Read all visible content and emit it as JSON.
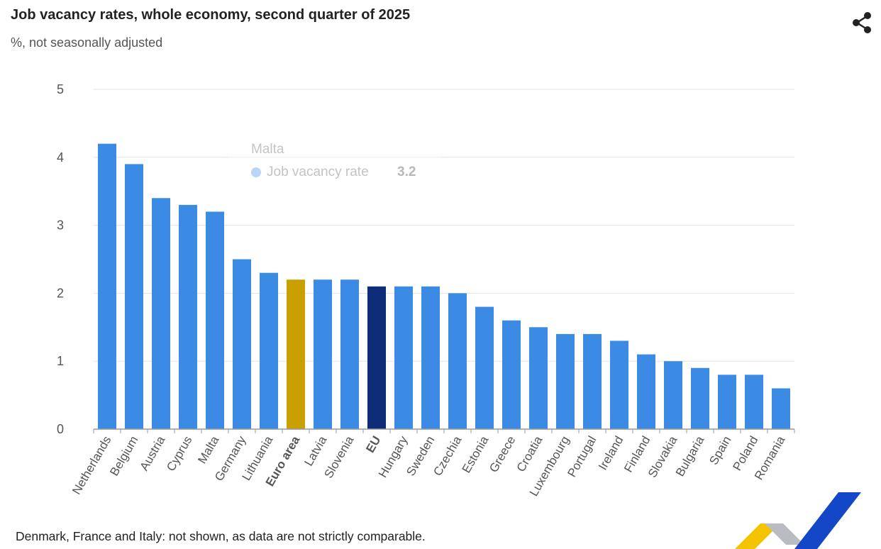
{
  "title": "Job vacancy rates, whole economy, second quarter of 2025",
  "subtitle": "%, not seasonally adjusted",
  "footnote": "Denmark, France and Italy: not shown, as data are not strictly comparable.",
  "icons": {
    "share": "share-icon",
    "logo": "eurostat-logo"
  },
  "colors": {
    "country": "#3b8be4",
    "euro_area": "#c9a000",
    "eu": "#0e2d78",
    "grid": "#e3e3e3",
    "axis": "#999999"
  },
  "tooltip": {
    "category": "Malta",
    "series": "Job vacancy rate",
    "value": "3.2"
  },
  "chart_data": {
    "type": "bar",
    "title": "Job vacancy rates, whole economy, second quarter of 2025",
    "subtitle": "%, not seasonally adjusted",
    "xlabel": "",
    "ylabel": "",
    "ylim": [
      0,
      5
    ],
    "yticks": [
      0,
      1,
      2,
      3,
      4,
      5
    ],
    "grid": true,
    "legend": "none",
    "categories": [
      "Netherlands",
      "Belgium",
      "Austria",
      "Cyprus",
      "Malta",
      "Germany",
      "Lithuania",
      "Euro area",
      "Latvia",
      "Slovenia",
      "EU",
      "Hungary",
      "Sweden",
      "Czechia",
      "Estonia",
      "Greece",
      "Croatia",
      "Luxembourg",
      "Portugal",
      "Ireland",
      "Finland",
      "Slovakia",
      "Bulgaria",
      "Spain",
      "Poland",
      "Romania"
    ],
    "bold_categories": [
      "Euro area",
      "EU"
    ],
    "series": [
      {
        "name": "Job vacancy rate",
        "values": [
          4.2,
          3.9,
          3.4,
          3.3,
          3.2,
          2.5,
          2.3,
          2.2,
          2.2,
          2.2,
          2.1,
          2.1,
          2.1,
          2.0,
          1.8,
          1.6,
          1.5,
          1.4,
          1.4,
          1.3,
          1.1,
          1.0,
          0.9,
          0.8,
          0.8,
          0.6
        ]
      }
    ]
  }
}
